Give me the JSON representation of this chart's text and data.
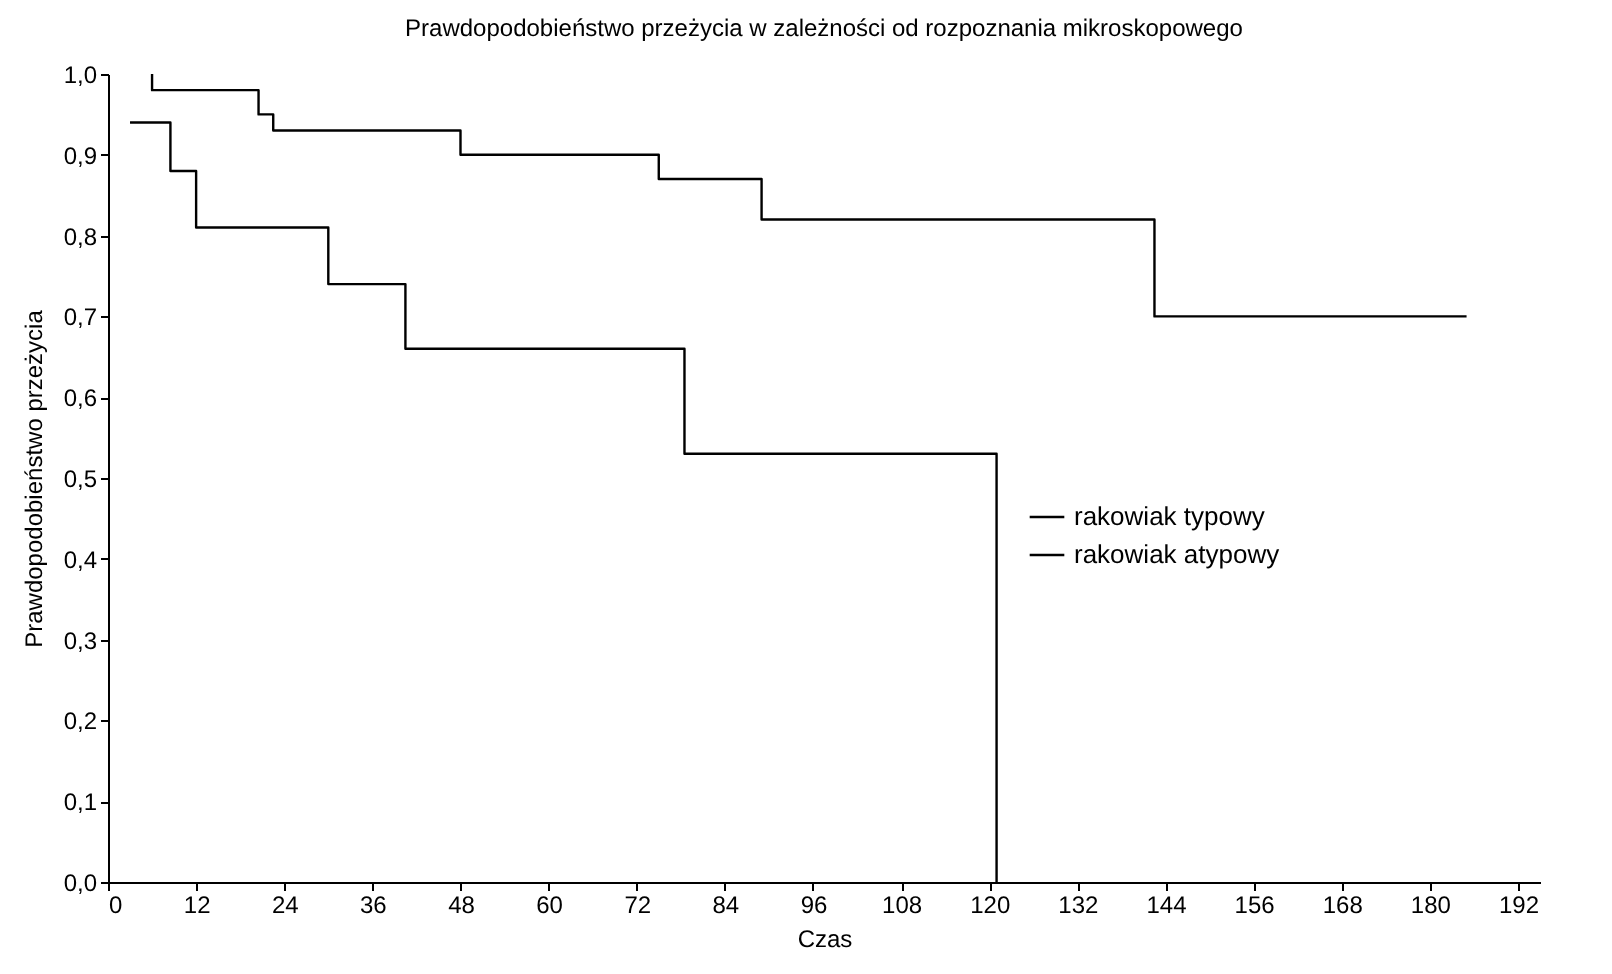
{
  "chart_data": {
    "type": "step",
    "title": "Prawdopodobieństwo przeżycia w zależności od rozpoznania mikroskopowego",
    "xlabel": "Czas",
    "ylabel": "Prawdopodobieństwo przeżycia",
    "series": [
      {
        "name": "rakowiak typowy",
        "color": "#000000",
        "x": [
          6,
          6,
          20.5,
          22.5,
          48,
          75,
          89,
          142.5,
          185
        ],
        "values": [
          1.0,
          0.98,
          0.95,
          0.93,
          0.9,
          0.87,
          0.82,
          0.7,
          0.7
        ]
      },
      {
        "name": "rakowiak atypowy",
        "color": "#000000",
        "x": [
          3,
          8.5,
          12,
          30,
          40.5,
          78.5,
          121,
          121
        ],
        "values": [
          0.94,
          0.88,
          0.81,
          0.74,
          0.66,
          0.53,
          0.53,
          0
        ]
      }
    ],
    "xlim": [
      0,
      195
    ],
    "xticks": [
      0,
      12,
      24,
      36,
      48,
      60,
      72,
      84,
      96,
      108,
      120,
      132,
      144,
      156,
      168,
      180,
      192
    ],
    "ylim": [
      0,
      1
    ],
    "yticks": [
      {
        "value": 0,
        "label": "0,0"
      },
      {
        "value": 0.1,
        "label": "0,1"
      },
      {
        "value": 0.2,
        "label": "0,2"
      },
      {
        "value": 0.3,
        "label": "0,3"
      },
      {
        "value": 0.4,
        "label": "0,4"
      },
      {
        "value": 0.5,
        "label": "0,5"
      },
      {
        "value": 0.6,
        "label": "0,6"
      },
      {
        "value": 0.7,
        "label": "0,7"
      },
      {
        "value": 0.8,
        "label": "0,8"
      },
      {
        "value": 0.9,
        "label": "0,9"
      },
      {
        "value": 1,
        "label": "1,0"
      }
    ],
    "grid": false,
    "legend": "right",
    "marker": "none",
    "line_style": "solid"
  }
}
